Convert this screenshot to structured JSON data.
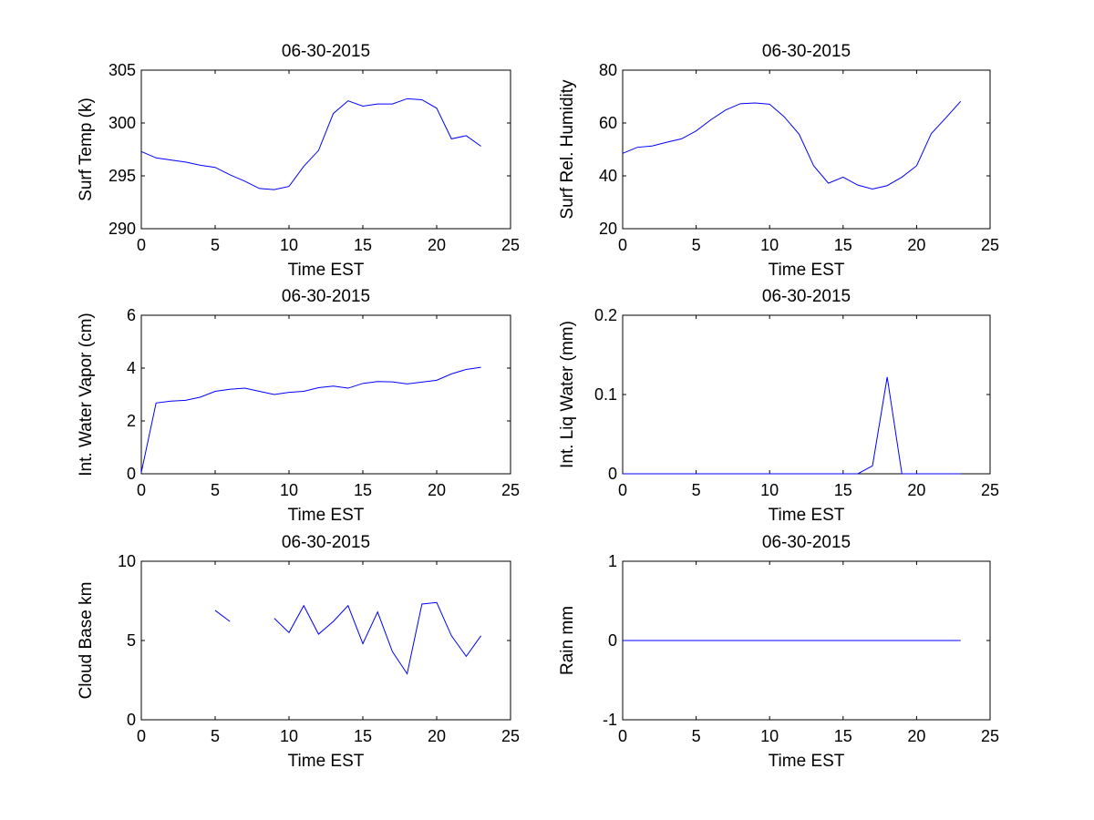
{
  "chart_data": [
    {
      "type": "line",
      "title": "06-30-2015",
      "xlabel": "Time EST",
      "ylabel": "Surf Temp (k)",
      "xlim": [
        0,
        25
      ],
      "ylim": [
        290,
        305
      ],
      "xticks": [
        0,
        5,
        10,
        15,
        20,
        25
      ],
      "yticks": [
        290,
        295,
        300,
        305
      ],
      "xtick_labels": [
        "0",
        "5",
        "10",
        "15",
        "20",
        "25"
      ],
      "ytick_labels": [
        "290",
        "295",
        "300",
        "305"
      ],
      "grid": false,
      "series": [
        {
          "color": "#0000ff",
          "x": [
            0,
            1,
            2,
            3,
            4,
            5,
            6,
            7,
            8,
            9,
            10,
            11,
            12,
            13,
            14,
            15,
            16,
            17,
            18,
            19,
            20,
            21,
            22,
            23
          ],
          "y": [
            297.3,
            296.7,
            296.5,
            296.3,
            296.0,
            295.8,
            295.1,
            294.5,
            293.8,
            293.7,
            294.0,
            295.9,
            297.4,
            300.9,
            302.1,
            301.6,
            301.8,
            301.8,
            302.3,
            302.2,
            301.4,
            298.5,
            298.8,
            297.8
          ]
        }
      ]
    },
    {
      "type": "line",
      "title": "06-30-2015",
      "xlabel": "Time EST",
      "ylabel": "Surf Rel. Humidity",
      "xlim": [
        0,
        25
      ],
      "ylim": [
        20,
        80
      ],
      "xticks": [
        0,
        5,
        10,
        15,
        20,
        25
      ],
      "yticks": [
        20,
        40,
        60,
        80
      ],
      "xtick_labels": [
        "0",
        "5",
        "10",
        "15",
        "20",
        "25"
      ],
      "ytick_labels": [
        "20",
        "40",
        "60",
        "80"
      ],
      "grid": false,
      "series": [
        {
          "color": "#0000ff",
          "x": [
            0,
            1,
            2,
            3,
            4,
            5,
            6,
            7,
            8,
            9,
            10,
            11,
            12,
            13,
            14,
            15,
            16,
            17,
            18,
            19,
            20,
            21,
            22,
            23
          ],
          "y": [
            48.5,
            50.8,
            51.3,
            52.7,
            54.0,
            57.0,
            61.2,
            64.9,
            67.3,
            67.6,
            67.1,
            62.3,
            55.8,
            43.8,
            37.2,
            39.5,
            36.5,
            35.0,
            36.3,
            39.5,
            43.8,
            56.0,
            62.0,
            68.2
          ]
        }
      ]
    },
    {
      "type": "line",
      "title": "06-30-2015",
      "xlabel": "Time EST",
      "ylabel": "Int. Water Vapor (cm)",
      "xlim": [
        0,
        25
      ],
      "ylim": [
        0,
        6
      ],
      "xticks": [
        0,
        5,
        10,
        15,
        20,
        25
      ],
      "yticks": [
        0,
        2,
        4,
        6
      ],
      "xtick_labels": [
        "0",
        "5",
        "10",
        "15",
        "20",
        "25"
      ],
      "ytick_labels": [
        "0",
        "2",
        "4",
        "6"
      ],
      "grid": false,
      "series": [
        {
          "color": "#0000ff",
          "x": [
            0,
            1,
            2,
            3,
            4,
            5,
            6,
            7,
            8,
            9,
            10,
            11,
            12,
            13,
            14,
            15,
            16,
            17,
            18,
            19,
            20,
            21,
            22,
            23
          ],
          "y": [
            0.05,
            2.68,
            2.75,
            2.78,
            2.9,
            3.12,
            3.2,
            3.24,
            3.12,
            3.0,
            3.08,
            3.12,
            3.26,
            3.32,
            3.24,
            3.42,
            3.49,
            3.48,
            3.4,
            3.47,
            3.54,
            3.78,
            3.95,
            4.03
          ]
        }
      ]
    },
    {
      "type": "line",
      "title": "06-30-2015",
      "xlabel": "Time EST",
      "ylabel": "Int. Liq Water (mm)",
      "xlim": [
        0,
        25
      ],
      "ylim": [
        0,
        0.2
      ],
      "xticks": [
        0,
        5,
        10,
        15,
        20,
        25
      ],
      "yticks": [
        0,
        0.1,
        0.2
      ],
      "xtick_labels": [
        "0",
        "5",
        "10",
        "15",
        "20",
        "25"
      ],
      "ytick_labels": [
        "0",
        "0.1",
        "0.2"
      ],
      "grid": false,
      "series": [
        {
          "color": "#0000ff",
          "x": [
            0,
            1,
            2,
            3,
            4,
            5,
            6,
            7,
            8,
            9,
            10,
            11,
            12,
            13,
            14,
            15,
            16,
            17,
            18,
            19,
            20,
            21,
            22,
            23
          ],
          "y": [
            0,
            0,
            0,
            0,
            0,
            0,
            0,
            0,
            0,
            0,
            0,
            0,
            0,
            0,
            0,
            0,
            0,
            0.01,
            0.122,
            0,
            0,
            0,
            0,
            0
          ]
        }
      ]
    },
    {
      "type": "line",
      "title": "06-30-2015",
      "xlabel": "Time EST",
      "ylabel": "Cloud Base km",
      "xlim": [
        0,
        25
      ],
      "ylim": [
        0,
        10
      ],
      "xticks": [
        0,
        5,
        10,
        15,
        20,
        25
      ],
      "yticks": [
        0,
        5,
        10
      ],
      "xtick_labels": [
        "0",
        "5",
        "10",
        "15",
        "20",
        "25"
      ],
      "ytick_labels": [
        "0",
        "5",
        "10"
      ],
      "grid": false,
      "series": [
        {
          "color": "#0000ff",
          "x": [
            0,
            1,
            2,
            3,
            4,
            5,
            6,
            7,
            8,
            9,
            10,
            11,
            12,
            13,
            14,
            15,
            16,
            17,
            18,
            19,
            20,
            21,
            22,
            23
          ],
          "y": [
            null,
            null,
            null,
            null,
            null,
            6.9,
            6.2,
            null,
            null,
            6.4,
            5.5,
            7.2,
            5.4,
            6.2,
            7.2,
            4.8,
            6.8,
            4.3,
            2.9,
            7.3,
            7.4,
            5.3,
            4.0,
            5.3
          ]
        }
      ]
    },
    {
      "type": "line",
      "title": "06-30-2015",
      "xlabel": "Time EST",
      "ylabel": "Rain mm",
      "xlim": [
        0,
        25
      ],
      "ylim": [
        -1,
        1
      ],
      "xticks": [
        0,
        5,
        10,
        15,
        20,
        25
      ],
      "yticks": [
        -1,
        0,
        1
      ],
      "xtick_labels": [
        "0",
        "5",
        "10",
        "15",
        "20",
        "25"
      ],
      "ytick_labels": [
        "-1",
        "0",
        "1"
      ],
      "grid": false,
      "series": [
        {
          "color": "#0000ff",
          "x": [
            0,
            1,
            2,
            3,
            4,
            5,
            6,
            7,
            8,
            9,
            10,
            11,
            12,
            13,
            14,
            15,
            16,
            17,
            18,
            19,
            20,
            21,
            22,
            23
          ],
          "y": [
            0,
            0,
            0,
            0,
            0,
            0,
            0,
            0,
            0,
            0,
            0,
            0,
            0,
            0,
            0,
            0,
            0,
            0,
            0,
            0,
            0,
            0,
            0,
            0
          ]
        }
      ]
    }
  ]
}
